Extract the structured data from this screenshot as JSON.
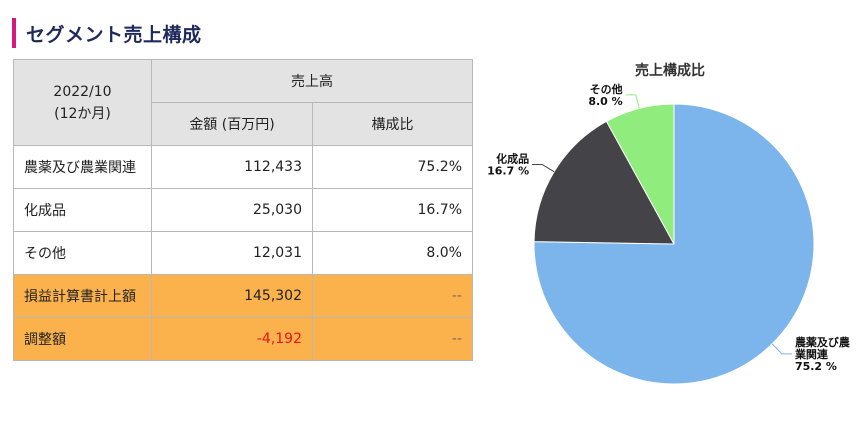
{
  "heading": "セグメント売上構成",
  "table": {
    "period_line1": "2022/10",
    "period_line2": "(12か月)",
    "sales_header": "売上高",
    "amount_header": "金額 (百万円)",
    "ratio_header": "構成比",
    "rows": [
      {
        "label": "農薬及び農業関連",
        "amount": "112,433",
        "ratio": "75.2%"
      },
      {
        "label": "化成品",
        "amount": "25,030",
        "ratio": "16.7%"
      },
      {
        "label": "その他",
        "amount": "12,031",
        "ratio": "8.0%"
      },
      {
        "label": "損益計算書計上額",
        "amount": "145,302",
        "ratio": "--"
      },
      {
        "label": "調整額",
        "amount": "-4,192",
        "ratio": "--"
      }
    ]
  },
  "colors": {
    "accent_bar": "#d6177f",
    "highlight_row": "#fcb24c",
    "negative": "#e8151b"
  },
  "chart_data": {
    "type": "pie",
    "title": "売上構成比",
    "slices": [
      {
        "label_lines": [
          "農薬及び農",
          "業関連"
        ],
        "value_text": "75.2 %",
        "value": 75.2,
        "color": "#7cb4ec"
      },
      {
        "label_lines": [
          "化成品"
        ],
        "value_text": "16.7 %",
        "value": 16.7,
        "color": "#434348"
      },
      {
        "label_lines": [
          "その他"
        ],
        "value_text": "8.0 %",
        "value": 8.0,
        "color": "#90ed7d"
      }
    ]
  }
}
